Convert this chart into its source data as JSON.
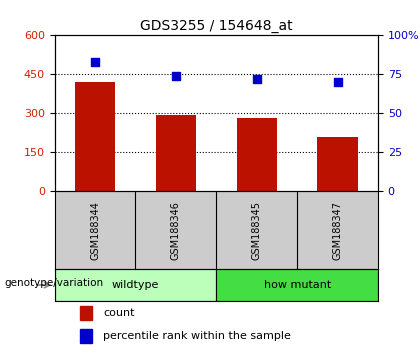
{
  "title": "GDS3255 / 154648_at",
  "samples": [
    "GSM188344",
    "GSM188346",
    "GSM188345",
    "GSM188347"
  ],
  "counts": [
    420,
    295,
    280,
    210
  ],
  "percentiles": [
    83,
    74,
    72,
    70
  ],
  "groups": [
    {
      "label": "wildtype",
      "indices": [
        0,
        1
      ],
      "color": "#bbffbb"
    },
    {
      "label": "how mutant",
      "indices": [
        2,
        3
      ],
      "color": "#44dd44"
    }
  ],
  "bar_color": "#bb1100",
  "dot_color": "#0000cc",
  "left_ylim": [
    0,
    600
  ],
  "left_yticks": [
    0,
    150,
    300,
    450,
    600
  ],
  "right_ylim": [
    0,
    100
  ],
  "right_yticks": [
    0,
    25,
    50,
    75,
    100
  ],
  "right_yticklabels": [
    "0",
    "25",
    "50",
    "75",
    "100%"
  ],
  "grid_values": [
    150,
    300,
    450
  ],
  "label_count": "count",
  "label_percentile": "percentile rank within the sample",
  "genotype_label": "genotype/variation",
  "bar_width": 0.5,
  "tick_label_color_left": "#cc2200",
  "tick_label_color_right": "#0000cc",
  "bg_color": "#ffffff",
  "label_area_color": "#cccccc"
}
